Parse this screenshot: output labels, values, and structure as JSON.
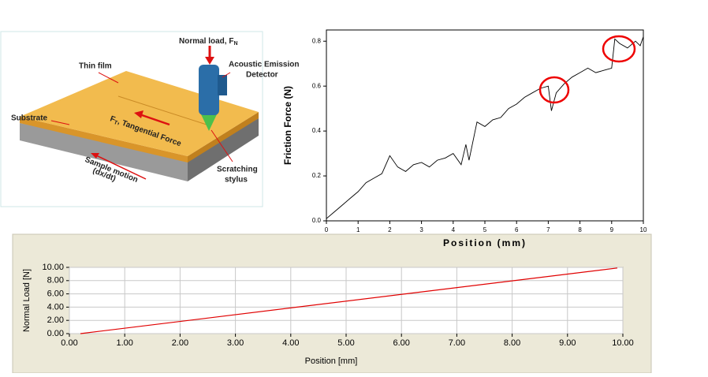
{
  "diagram": {
    "normal_load": "Normal load, F",
    "normal_load_sub": "N",
    "detector_1": "Acoustic Emission",
    "detector_2": "Detector",
    "thin_film": "Thin film",
    "substrate": "Substrate",
    "tangential_f": "F",
    "tangential_sub": "T",
    "tangential": ", Tangential Force",
    "motion_1": "Sample motion",
    "motion_2": "(dx/dt)",
    "stylus_1": "Scratching",
    "stylus_2": "stylus"
  },
  "chart_data": [
    {
      "type": "line",
      "xlabel": "Position (mm)",
      "ylabel": "Friction Force (N)",
      "x": [
        0,
        0.25,
        0.5,
        0.75,
        1.0,
        1.25,
        1.5,
        1.75,
        2.0,
        2.25,
        2.5,
        2.75,
        3.0,
        3.25,
        3.5,
        3.75,
        4.0,
        4.25,
        4.4,
        4.5,
        4.75,
        5.0,
        5.25,
        5.5,
        5.75,
        6.0,
        6.25,
        6.5,
        6.75,
        7.0,
        7.1,
        7.25,
        7.5,
        7.75,
        8.0,
        8.25,
        8.5,
        8.75,
        9.0,
        9.1,
        9.25,
        9.5,
        9.75,
        9.9,
        10.0
      ],
      "values": [
        0.01,
        0.04,
        0.07,
        0.1,
        0.13,
        0.17,
        0.19,
        0.21,
        0.29,
        0.24,
        0.22,
        0.25,
        0.26,
        0.24,
        0.27,
        0.28,
        0.3,
        0.25,
        0.34,
        0.27,
        0.44,
        0.42,
        0.45,
        0.46,
        0.5,
        0.52,
        0.55,
        0.57,
        0.59,
        0.6,
        0.49,
        0.57,
        0.61,
        0.64,
        0.66,
        0.68,
        0.66,
        0.67,
        0.68,
        0.81,
        0.79,
        0.77,
        0.8,
        0.78,
        0.82
      ],
      "color": "#000000",
      "xlim": [
        0,
        10
      ],
      "ylim": [
        0,
        0.85
      ],
      "xticks": [
        0,
        1,
        2,
        3,
        4,
        5,
        6,
        7,
        8,
        9,
        10
      ],
      "yticks": [
        {
          "value": 0,
          "label": "0.0"
        },
        0.2,
        0.4,
        0.6,
        0.8
      ],
      "grid": false
    },
    {
      "type": "line",
      "xlabel": "Position [mm]",
      "ylabel": "Normal Load [N]",
      "x": [
        0.2,
        9.9
      ],
      "values": [
        0,
        9.9
      ],
      "color": "#e00000",
      "xlim": [
        0,
        10
      ],
      "ylim": [
        0,
        10
      ],
      "xticks": [
        {
          "value": 0,
          "label": "0.00"
        },
        {
          "value": 1,
          "label": "1.00"
        },
        {
          "value": 2,
          "label": "2.00"
        },
        {
          "value": 3,
          "label": "3.00"
        },
        {
          "value": 4,
          "label": "4.00"
        },
        {
          "value": 5,
          "label": "5.00"
        },
        {
          "value": 6,
          "label": "6.00"
        },
        {
          "value": 7,
          "label": "7.00"
        },
        {
          "value": 8,
          "label": "8.00"
        },
        {
          "value": 9,
          "label": "9.00"
        },
        {
          "value": 10,
          "label": "10.00"
        }
      ],
      "yticks": [
        {
          "value": 0,
          "label": "0.00"
        },
        {
          "value": 2,
          "label": "2.00"
        },
        {
          "value": 4,
          "label": "4.00"
        },
        {
          "value": 6,
          "label": "6.00"
        },
        {
          "value": 8,
          "label": "8.00"
        },
        {
          "value": 10,
          "label": "10.00"
        }
      ],
      "grid": true
    }
  ]
}
